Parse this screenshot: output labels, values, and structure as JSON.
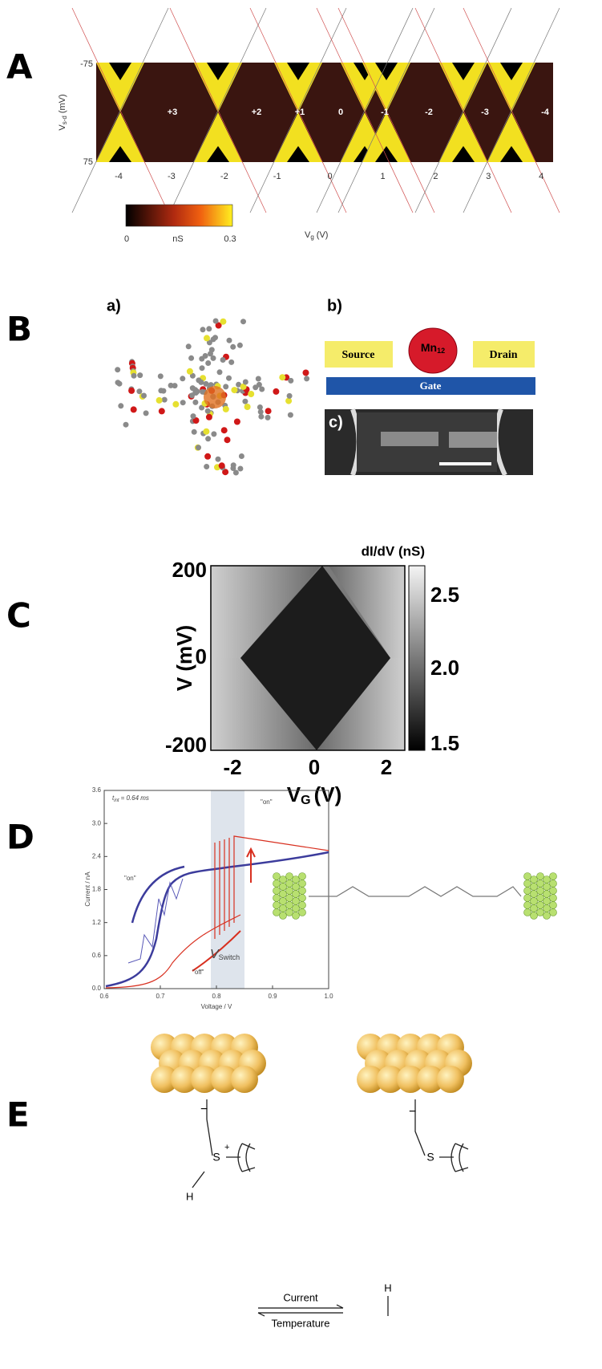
{
  "figure": {
    "A": {
      "label": "A",
      "yticks": [
        "-75",
        "75"
      ],
      "ylabel": "V",
      "ylabel_sub": "s-d",
      "ylabel_unit": "(mV)",
      "states": [
        "+3",
        "+2",
        "+1",
        "0",
        "-1",
        "-2",
        "-3",
        "-4"
      ],
      "xticks": [
        "-4",
        "-3",
        "-2",
        "-1",
        "0",
        "1",
        "2",
        "3",
        "4"
      ],
      "colorbar": [
        "0",
        "nS",
        "0.3"
      ],
      "xlabel": "V",
      "xlabel_sub": "g",
      "xlabel_unit": "(V)"
    },
    "B": {
      "label": "B",
      "a": "a)",
      "b": "b)",
      "c": "c)",
      "source": "Source",
      "mn": "Mn",
      "mn_sub": "12",
      "drain": "Drain",
      "gate": "Gate"
    },
    "C": {
      "label": "C",
      "colorbar_title": "dI/dV (nS)",
      "yticks": [
        "200",
        "0",
        "-200"
      ],
      "xticks": [
        "-2",
        "0",
        "2"
      ],
      "ylabel": "V (mV)",
      "xlabel": "V",
      "xlabel_sub": "G",
      "xlabel_unit": "(V)",
      "colorbar_ticks": [
        "2.5",
        "2.0",
        "1.5"
      ]
    },
    "D": {
      "label": "D",
      "yticks": [
        "0.0",
        "0.6",
        "1.2",
        "1.8",
        "2.4",
        "3.0",
        "3.6"
      ],
      "xticks": [
        "0.6",
        "0.7",
        "0.8",
        "0.9",
        "1.0"
      ],
      "ylabel": "Current / nA",
      "xlabel": "Voltage / V",
      "t_int": "t",
      "t_int_sub": "int",
      "t_int_value": "= 0.64 ms",
      "on_left": "\"on\"",
      "on_right": "\"on\"",
      "off": "\"off\"",
      "vswitch": "V",
      "vswitch_sub": "Switch"
    },
    "E": {
      "label": "E",
      "s_left": "S",
      "plus": "+",
      "h_left": "H",
      "s_right": "S",
      "minus_left": "−",
      "minus_right": "−",
      "current": "Current",
      "temperature": "Temperature",
      "h_bottom": "H"
    }
  }
}
